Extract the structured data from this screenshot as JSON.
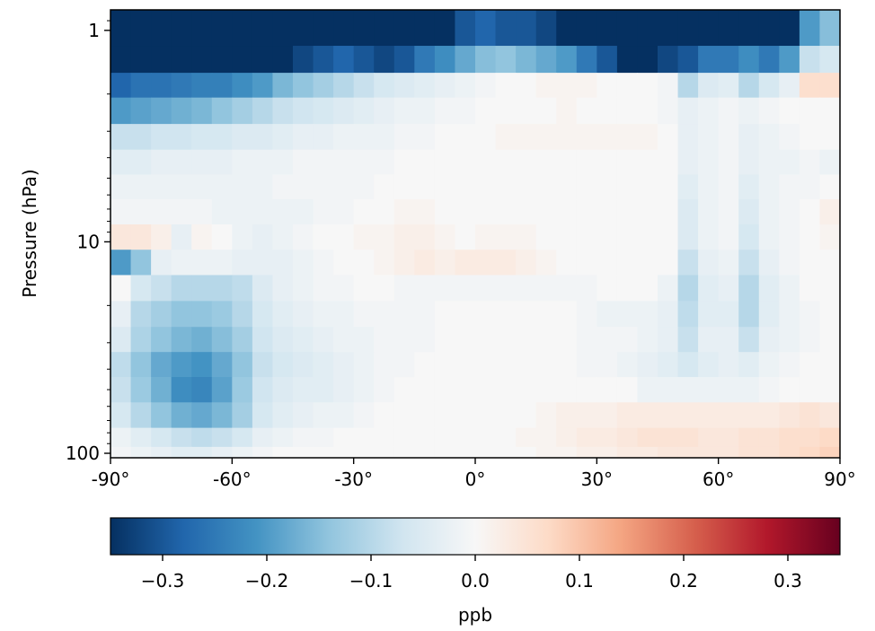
{
  "chart_data": {
    "type": "heatmap",
    "title": "",
    "xlabel": "",
    "ylabel": "Pressure (hPa)",
    "x_range": [
      -90,
      90
    ],
    "x_ticks": [
      -90,
      -60,
      -30,
      0,
      30,
      60,
      90
    ],
    "x_tick_labels": [
      "-90°",
      "-60°",
      "-30°",
      "0°",
      "30°",
      "60°",
      "90°"
    ],
    "y_scale": "log",
    "y_range": [
      105,
      0.8
    ],
    "y_ticks": [
      1,
      10,
      100
    ],
    "y_tick_labels": [
      "1",
      "10",
      "100"
    ],
    "colormap": "RdBu_r",
    "vmin": -0.35,
    "vmax": 0.35,
    "colorbar": {
      "label": "ppb",
      "ticks": [
        -0.3,
        -0.2,
        -0.1,
        0.0,
        0.1,
        0.2,
        0.3
      ],
      "tick_labels": [
        "−0.3",
        "−0.2",
        "−0.1",
        "0.0",
        "0.1",
        "0.2",
        "0.3"
      ]
    },
    "latitudes": [
      -87.5,
      -82.5,
      -77.5,
      -72.5,
      -67.5,
      -62.5,
      -57.5,
      -52.5,
      -47.5,
      -42.5,
      -37.5,
      -32.5,
      -27.5,
      -22.5,
      -17.5,
      -12.5,
      -7.5,
      -2.5,
      2.5,
      7.5,
      12.5,
      17.5,
      22.5,
      27.5,
      32.5,
      37.5,
      42.5,
      47.5,
      52.5,
      57.5,
      62.5,
      67.5,
      72.5,
      77.5,
      82.5,
      87.5
    ],
    "pressure_levels": [
      1,
      1.4,
      1.8,
      2.4,
      3.2,
      4.2,
      5.5,
      7.2,
      9.5,
      12.5,
      16.5,
      22,
      29,
      38,
      50,
      66,
      87,
      100
    ],
    "values": [
      [
        -0.35,
        -0.35,
        -0.35,
        -0.35,
        -0.35,
        -0.35,
        -0.35,
        -0.35,
        -0.35,
        -0.35,
        -0.35,
        -0.35,
        -0.35,
        -0.35,
        -0.35,
        -0.35,
        -0.35,
        -0.3,
        -0.28,
        -0.3,
        -0.3,
        -0.32,
        -0.35,
        -0.35,
        -0.35,
        -0.35,
        -0.35,
        -0.35,
        -0.35,
        -0.35,
        -0.35,
        -0.35,
        -0.35,
        -0.35,
        -0.2,
        -0.15
      ],
      [
        -0.35,
        -0.35,
        -0.35,
        -0.35,
        -0.35,
        -0.35,
        -0.35,
        -0.35,
        -0.35,
        -0.32,
        -0.3,
        -0.28,
        -0.3,
        -0.32,
        -0.3,
        -0.25,
        -0.22,
        -0.18,
        -0.15,
        -0.14,
        -0.16,
        -0.18,
        -0.2,
        -0.25,
        -0.3,
        -0.35,
        -0.35,
        -0.32,
        -0.3,
        -0.25,
        -0.25,
        -0.22,
        -0.25,
        -0.2,
        -0.08,
        -0.06
      ],
      [
        -0.28,
        -0.26,
        -0.26,
        -0.25,
        -0.24,
        -0.24,
        -0.22,
        -0.2,
        -0.16,
        -0.14,
        -0.12,
        -0.1,
        -0.08,
        -0.06,
        -0.05,
        -0.04,
        -0.03,
        -0.02,
        -0.01,
        0.0,
        0.0,
        0.01,
        0.01,
        0.01,
        0.0,
        0.0,
        0.0,
        -0.01,
        -0.1,
        -0.05,
        -0.04,
        -0.1,
        -0.06,
        -0.03,
        0.06,
        0.06
      ],
      [
        -0.2,
        -0.19,
        -0.18,
        -0.17,
        -0.16,
        -0.14,
        -0.12,
        -0.1,
        -0.08,
        -0.07,
        -0.06,
        -0.05,
        -0.04,
        -0.03,
        -0.02,
        -0.02,
        -0.01,
        -0.01,
        0.0,
        0.0,
        0.0,
        0.0,
        0.01,
        0.0,
        0.0,
        0.0,
        0.0,
        -0.01,
        -0.03,
        -0.02,
        -0.01,
        -0.02,
        -0.01,
        0.0,
        0.0,
        0.0
      ],
      [
        -0.08,
        -0.08,
        -0.07,
        -0.07,
        -0.06,
        -0.06,
        -0.05,
        -0.05,
        -0.04,
        -0.03,
        -0.03,
        -0.02,
        -0.02,
        -0.02,
        -0.01,
        -0.01,
        0.0,
        0.0,
        0.0,
        0.01,
        0.01,
        0.01,
        0.01,
        0.01,
        0.01,
        0.01,
        0.01,
        0.0,
        -0.03,
        -0.02,
        -0.01,
        -0.03,
        -0.02,
        -0.01,
        0.0,
        0.0
      ],
      [
        -0.04,
        -0.04,
        -0.03,
        -0.03,
        -0.03,
        -0.03,
        -0.02,
        -0.02,
        -0.02,
        -0.01,
        -0.01,
        -0.01,
        -0.01,
        -0.01,
        0.0,
        0.0,
        0.0,
        0.0,
        0.0,
        0.0,
        0.0,
        0.0,
        0.0,
        0.0,
        0.0,
        0.0,
        0.0,
        0.0,
        -0.03,
        -0.02,
        -0.01,
        -0.03,
        -0.02,
        -0.02,
        -0.01,
        -0.02
      ],
      [
        -0.02,
        -0.02,
        -0.02,
        -0.02,
        -0.02,
        -0.02,
        -0.02,
        -0.02,
        -0.01,
        -0.01,
        -0.01,
        -0.01,
        -0.01,
        0.0,
        0.0,
        0.0,
        0.0,
        0.0,
        0.0,
        0.0,
        0.0,
        0.0,
        0.0,
        0.0,
        0.0,
        0.0,
        0.0,
        0.0,
        -0.04,
        -0.02,
        -0.01,
        -0.04,
        -0.02,
        -0.01,
        -0.01,
        0.0
      ],
      [
        -0.01,
        -0.01,
        -0.01,
        -0.01,
        -0.01,
        -0.02,
        -0.02,
        -0.02,
        -0.02,
        -0.02,
        -0.01,
        -0.01,
        0.0,
        0.0,
        0.01,
        0.01,
        0.0,
        0.0,
        0.0,
        0.0,
        0.0,
        0.0,
        0.0,
        0.0,
        0.0,
        0.0,
        0.0,
        0.0,
        -0.05,
        -0.02,
        -0.01,
        -0.05,
        -0.02,
        -0.01,
        0.0,
        0.02
      ],
      [
        0.04,
        0.04,
        0.02,
        -0.03,
        0.01,
        0.0,
        -0.02,
        -0.03,
        -0.02,
        -0.01,
        0.0,
        0.0,
        0.01,
        0.01,
        0.02,
        0.02,
        0.01,
        0.0,
        0.01,
        0.01,
        0.01,
        0.0,
        0.0,
        0.0,
        0.0,
        0.0,
        0.0,
        0.0,
        -0.05,
        -0.02,
        -0.01,
        -0.06,
        -0.02,
        -0.01,
        0.0,
        0.01
      ],
      [
        -0.2,
        -0.14,
        -0.03,
        -0.02,
        -0.02,
        -0.02,
        -0.03,
        -0.03,
        -0.03,
        -0.02,
        -0.01,
        0.0,
        0.0,
        0.01,
        0.02,
        0.03,
        0.02,
        0.03,
        0.03,
        0.03,
        0.02,
        0.01,
        0.0,
        0.0,
        0.0,
        0.0,
        0.0,
        0.0,
        -0.08,
        -0.03,
        -0.02,
        -0.08,
        -0.03,
        -0.01,
        0.0,
        0.0
      ],
      [
        0.0,
        -0.06,
        -0.08,
        -0.1,
        -0.1,
        -0.1,
        -0.09,
        -0.05,
        -0.03,
        -0.02,
        -0.01,
        -0.01,
        0.0,
        0.0,
        -0.01,
        -0.01,
        -0.01,
        -0.01,
        -0.01,
        -0.01,
        -0.01,
        -0.01,
        -0.01,
        -0.01,
        0.0,
        0.0,
        0.0,
        -0.02,
        -0.1,
        -0.04,
        -0.03,
        -0.1,
        -0.04,
        -0.02,
        0.0,
        0.0
      ],
      [
        -0.03,
        -0.1,
        -0.12,
        -0.14,
        -0.14,
        -0.13,
        -0.1,
        -0.06,
        -0.04,
        -0.03,
        -0.02,
        -0.02,
        -0.01,
        -0.01,
        -0.01,
        -0.01,
        0.0,
        0.0,
        0.0,
        0.0,
        0.0,
        0.0,
        0.0,
        -0.01,
        -0.02,
        -0.02,
        -0.02,
        -0.03,
        -0.09,
        -0.04,
        -0.04,
        -0.1,
        -0.04,
        -0.02,
        -0.01,
        0.0
      ],
      [
        -0.05,
        -0.11,
        -0.14,
        -0.16,
        -0.17,
        -0.15,
        -0.12,
        -0.07,
        -0.05,
        -0.04,
        -0.03,
        -0.02,
        -0.02,
        -0.01,
        -0.01,
        -0.01,
        0.0,
        0.0,
        0.0,
        0.0,
        0.0,
        0.0,
        0.0,
        -0.01,
        -0.01,
        -0.01,
        -0.02,
        -0.03,
        -0.08,
        -0.03,
        -0.03,
        -0.08,
        -0.03,
        -0.02,
        -0.01,
        0.0
      ],
      [
        -0.09,
        -0.14,
        -0.18,
        -0.2,
        -0.21,
        -0.18,
        -0.14,
        -0.08,
        -0.06,
        -0.05,
        -0.04,
        -0.03,
        -0.02,
        -0.01,
        -0.01,
        0.0,
        0.0,
        0.0,
        0.0,
        0.0,
        0.0,
        0.0,
        0.0,
        -0.01,
        -0.01,
        -0.02,
        -0.03,
        -0.04,
        -0.06,
        -0.04,
        -0.03,
        -0.04,
        -0.02,
        -0.01,
        0.0,
        0.0
      ],
      [
        -0.08,
        -0.13,
        -0.17,
        -0.22,
        -0.23,
        -0.19,
        -0.13,
        -0.07,
        -0.05,
        -0.04,
        -0.04,
        -0.03,
        -0.02,
        -0.01,
        0.0,
        0.0,
        0.0,
        0.0,
        0.0,
        0.0,
        0.0,
        0.0,
        0.0,
        0.0,
        0.0,
        0.0,
        -0.02,
        -0.02,
        -0.02,
        -0.02,
        -0.02,
        -0.02,
        -0.01,
        0.0,
        0.0,
        0.0
      ],
      [
        -0.06,
        -0.1,
        -0.14,
        -0.17,
        -0.18,
        -0.16,
        -0.12,
        -0.06,
        -0.04,
        -0.03,
        -0.02,
        -0.02,
        -0.01,
        0.0,
        0.0,
        0.0,
        0.0,
        0.0,
        0.0,
        0.0,
        0.0,
        0.01,
        0.02,
        0.02,
        0.02,
        0.03,
        0.03,
        0.03,
        0.03,
        0.03,
        0.03,
        0.03,
        0.03,
        0.04,
        0.05,
        0.04
      ],
      [
        -0.02,
        -0.04,
        -0.06,
        -0.08,
        -0.09,
        -0.08,
        -0.06,
        -0.03,
        -0.02,
        -0.01,
        -0.01,
        0.0,
        0.0,
        0.0,
        0.0,
        0.0,
        0.0,
        0.0,
        0.0,
        0.0,
        0.01,
        0.01,
        0.02,
        0.03,
        0.03,
        0.04,
        0.05,
        0.05,
        0.05,
        0.04,
        0.04,
        0.05,
        0.05,
        0.06,
        0.06,
        0.07
      ],
      [
        -0.01,
        -0.02,
        -0.03,
        -0.04,
        -0.04,
        -0.03,
        -0.02,
        -0.01,
        0.0,
        0.0,
        0.0,
        0.0,
        0.0,
        0.0,
        0.0,
        0.0,
        0.0,
        0.0,
        0.0,
        0.0,
        0.0,
        0.01,
        0.01,
        0.02,
        0.02,
        0.03,
        0.03,
        0.04,
        0.04,
        0.04,
        0.04,
        0.05,
        0.05,
        0.06,
        0.07,
        0.08
      ]
    ]
  }
}
